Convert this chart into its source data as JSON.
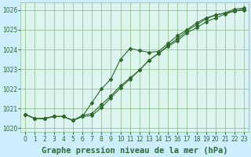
{
  "title": "Graphe pression niveau de la mer (hPa)",
  "xlabel_hours": [
    0,
    1,
    2,
    3,
    4,
    5,
    6,
    7,
    8,
    9,
    10,
    11,
    12,
    13,
    14,
    15,
    16,
    17,
    18,
    19,
    20,
    21,
    22,
    23
  ],
  "series1": [
    1020.7,
    1020.5,
    1020.5,
    1020.6,
    1020.6,
    1020.4,
    1020.6,
    1021.3,
    1022.0,
    1022.5,
    1023.5,
    1024.05,
    1023.95,
    1023.85,
    1023.9,
    1024.3,
    1024.7,
    1025.0,
    1025.35,
    1025.6,
    1025.75,
    1025.85,
    1025.95,
    1026.05
  ],
  "series2": [
    1020.7,
    1020.5,
    1020.5,
    1020.6,
    1020.6,
    1020.4,
    1020.65,
    1020.75,
    1021.2,
    1021.65,
    1022.15,
    1022.55,
    1022.95,
    1023.45,
    1023.8,
    1024.15,
    1024.45,
    1024.85,
    1025.1,
    1025.4,
    1025.6,
    1025.8,
    1025.95,
    1026.0
  ],
  "series3": [
    1020.7,
    1020.5,
    1020.5,
    1020.6,
    1020.6,
    1020.4,
    1020.6,
    1020.65,
    1021.05,
    1021.55,
    1022.05,
    1022.5,
    1022.95,
    1023.45,
    1023.8,
    1024.2,
    1024.55,
    1024.95,
    1025.25,
    1025.55,
    1025.75,
    1025.85,
    1026.05,
    1026.1
  ],
  "ylim": [
    1019.8,
    1026.4
  ],
  "yticks": [
    1020,
    1021,
    1022,
    1023,
    1024,
    1025,
    1026
  ],
  "line_color": "#2d6a2d",
  "bg_color": "#cceeff",
  "plot_bg": "#ddf5ee",
  "grid_color": "#88bb88",
  "title_fontsize": 7.5,
  "tick_fontsize": 5.5
}
